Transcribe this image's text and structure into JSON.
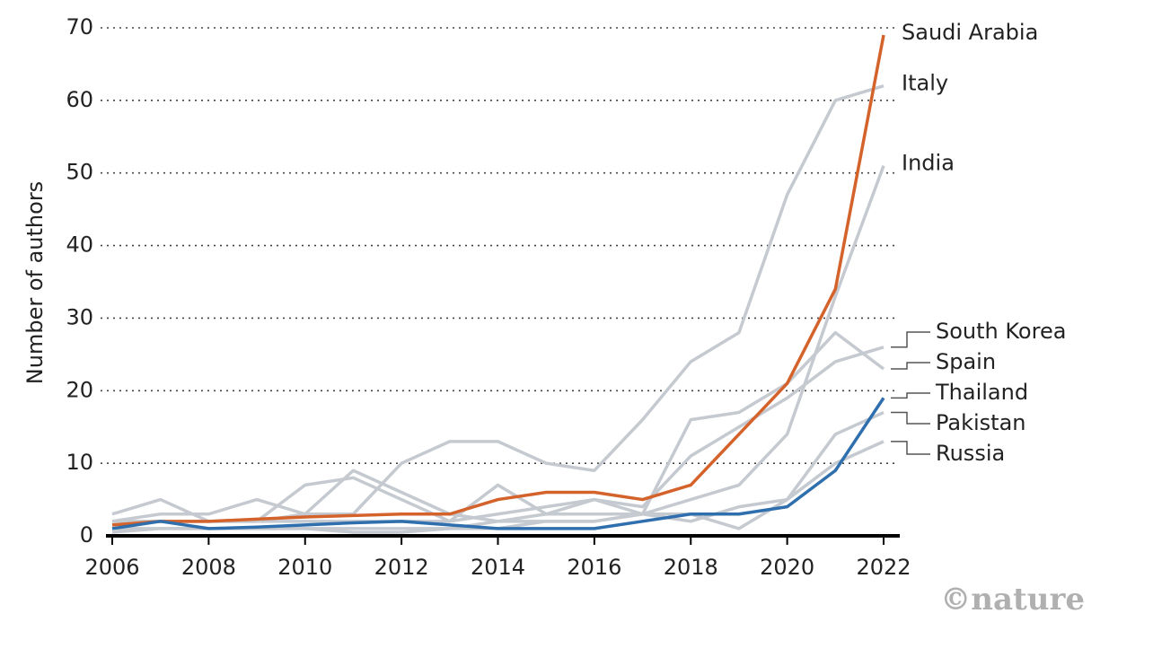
{
  "chart_data": {
    "type": "line",
    "y_label": "Number of authors",
    "credit": "©nature",
    "x": [
      2006,
      2007,
      2008,
      2009,
      2010,
      2011,
      2012,
      2013,
      2014,
      2015,
      2016,
      2017,
      2018,
      2019,
      2020,
      2021,
      2022
    ],
    "xlim": [
      2006,
      2022
    ],
    "xticks": [
      2006,
      2008,
      2010,
      2012,
      2014,
      2016,
      2018,
      2020,
      2022
    ],
    "ylim": [
      0,
      70
    ],
    "yticks": [
      0,
      10,
      20,
      30,
      40,
      50,
      60,
      70
    ],
    "grid": true,
    "series": [
      {
        "name": "Italy",
        "color": "#c5c9d0",
        "values": [
          2,
          3,
          3,
          5,
          3,
          3,
          10,
          13,
          13,
          10,
          9,
          16,
          24,
          28,
          47,
          60,
          62
        ]
      },
      {
        "name": "India",
        "color": "#c5c9d0",
        "values": [
          1,
          1,
          1,
          1,
          1,
          1,
          1,
          1,
          2,
          2,
          2,
          3,
          5,
          7,
          14,
          33,
          51
        ]
      },
      {
        "name": "South Korea",
        "color": "#c5c9d0",
        "values": [
          2,
          2,
          2,
          2,
          2,
          2,
          2,
          2,
          3,
          4,
          5,
          4,
          11,
          15,
          19,
          24,
          26
        ]
      },
      {
        "name": "Spain",
        "color": "#c5c9d0",
        "values": [
          3,
          5,
          2,
          2,
          7,
          8,
          5,
          2,
          7,
          3,
          5,
          3,
          16,
          17,
          21,
          28,
          23
        ]
      },
      {
        "name": "Pakistan",
        "color": "#c5c9d0",
        "values": [
          0.5,
          1,
          1,
          1,
          1,
          0.5,
          0.5,
          1,
          1,
          2,
          2,
          3,
          3,
          1,
          5,
          14,
          17
        ]
      },
      {
        "name": "Russia",
        "color": "#c5c9d0",
        "values": [
          2,
          2,
          2,
          2,
          3,
          9,
          6,
          3,
          2,
          3,
          3,
          3,
          2,
          4,
          5,
          10,
          13
        ]
      },
      {
        "name": "Saudi Arabia",
        "color": "#d4622b",
        "values": [
          1.5,
          2,
          2,
          2.3,
          2.6,
          2.8,
          3,
          3,
          5,
          6,
          6,
          5,
          7,
          14,
          21,
          34,
          69
        ]
      },
      {
        "name": "Thailand",
        "color": "#2f6fad",
        "values": [
          1,
          2,
          1,
          1.2,
          1.5,
          1.8,
          2,
          1.5,
          1,
          1,
          1,
          2,
          3,
          3,
          4,
          9,
          19
        ]
      }
    ]
  }
}
